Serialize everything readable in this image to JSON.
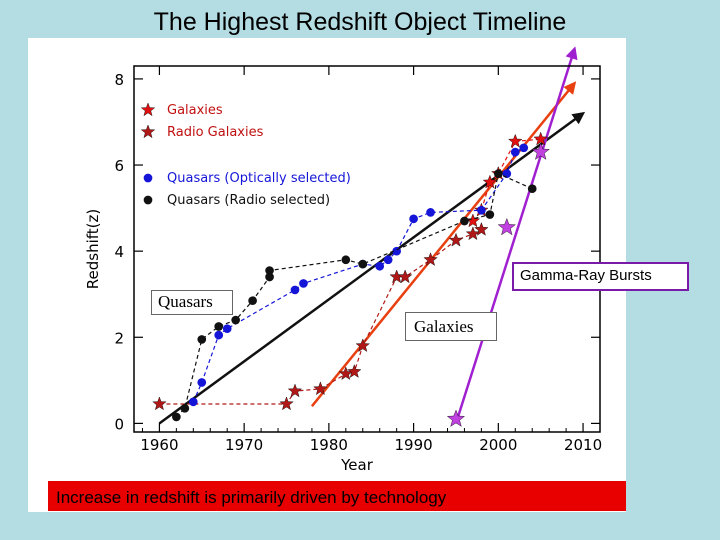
{
  "page": {
    "title": "The Highest Redshift Object Timeline"
  },
  "caption": "Increase in redshift is primarily driven by technology",
  "annotations": {
    "grb": "Gamma-Ray Bursts",
    "quasars": "Quasars",
    "galaxies": "Galaxies"
  },
  "chart_data": {
    "type": "scatter",
    "xlabel": "Year",
    "ylabel": "Redshift(z)",
    "xlim": [
      1957,
      2012
    ],
    "ylim": [
      -0.2,
      8.3
    ],
    "xticks": [
      "1960",
      "1970",
      "1980",
      "1990",
      "2000",
      "2010"
    ],
    "yticks": [
      "0",
      "2",
      "4",
      "6",
      "8"
    ],
    "legend_position": "top-left",
    "legend": [
      {
        "label": "Galaxies",
        "marker": "star",
        "color": "#e01010"
      },
      {
        "label": "Radio Galaxies",
        "marker": "star",
        "color": "#b01818"
      },
      {
        "label": "Quasars (Optically selected)",
        "marker": "circle",
        "color": "#1515d8"
      },
      {
        "label": "Quasars (Radio selected)",
        "marker": "circle",
        "color": "#111111"
      }
    ],
    "series": [
      {
        "name": "Radio Galaxies",
        "marker": "star",
        "color": "#b01818",
        "dashed": true,
        "points": [
          [
            1960,
            0.45
          ],
          [
            1975,
            0.45
          ],
          [
            1976,
            0.75
          ],
          [
            1979,
            0.8
          ],
          [
            1982,
            1.15
          ],
          [
            1983,
            1.2
          ],
          [
            1984,
            1.8
          ],
          [
            1988,
            3.4
          ],
          [
            1989,
            3.4
          ],
          [
            1992,
            3.8
          ],
          [
            1995,
            4.25
          ],
          [
            1997,
            4.4
          ],
          [
            1998,
            4.5
          ]
        ]
      },
      {
        "name": "Galaxies",
        "marker": "star",
        "color": "#e01010",
        "dashed": true,
        "points": [
          [
            1997,
            4.7
          ],
          [
            1998,
            4.95
          ],
          [
            1999,
            5.6
          ],
          [
            2000,
            5.8
          ],
          [
            2002,
            6.55
          ],
          [
            2005,
            6.6
          ]
        ]
      },
      {
        "name": "Quasars (Optically selected)",
        "marker": "circle",
        "color": "#1515d8",
        "dashed": true,
        "points": [
          [
            1964,
            0.5
          ],
          [
            1965,
            0.95
          ],
          [
            1967,
            2.05
          ],
          [
            1968,
            2.2
          ],
          [
            1976,
            3.1
          ],
          [
            1977,
            3.25
          ],
          [
            1984,
            3.7
          ],
          [
            1986,
            3.65
          ],
          [
            1987,
            3.8
          ],
          [
            1988,
            4.0
          ],
          [
            1990,
            4.75
          ],
          [
            1992,
            4.9
          ],
          [
            1998,
            4.95
          ],
          [
            2001,
            5.8
          ],
          [
            2002,
            6.3
          ],
          [
            2003,
            6.4
          ]
        ]
      },
      {
        "name": "Quasars (Radio selected)",
        "marker": "circle",
        "color": "#111111",
        "dashed": true,
        "points": [
          [
            1962,
            0.15
          ],
          [
            1963,
            0.35
          ],
          [
            1965,
            1.95
          ],
          [
            1967,
            2.25
          ],
          [
            1969,
            2.4
          ],
          [
            1971,
            2.85
          ],
          [
            1973,
            3.4
          ],
          [
            1973,
            3.55
          ],
          [
            1982,
            3.8
          ],
          [
            1984,
            3.7
          ],
          [
            1996,
            4.7
          ],
          [
            1999,
            4.85
          ],
          [
            2000,
            5.8
          ],
          [
            2004,
            5.45
          ]
        ]
      },
      {
        "name": "Gamma-Ray Bursts",
        "marker": "star",
        "color": "#c040e0",
        "dashed": false,
        "points": [
          [
            1995,
            0.1
          ],
          [
            2001,
            4.55
          ],
          [
            2005,
            6.3
          ]
        ]
      }
    ],
    "trend_lines": [
      {
        "color": "#111111",
        "points": [
          [
            1960,
            0
          ],
          [
            2010,
            7.2
          ]
        ]
      },
      {
        "color": "#e84010",
        "points": [
          [
            1978,
            0.4
          ],
          [
            2009,
            7.9
          ]
        ]
      },
      {
        "color": "#a020d0",
        "points": [
          [
            1995,
            0
          ],
          [
            2009,
            8.7
          ]
        ]
      }
    ]
  }
}
